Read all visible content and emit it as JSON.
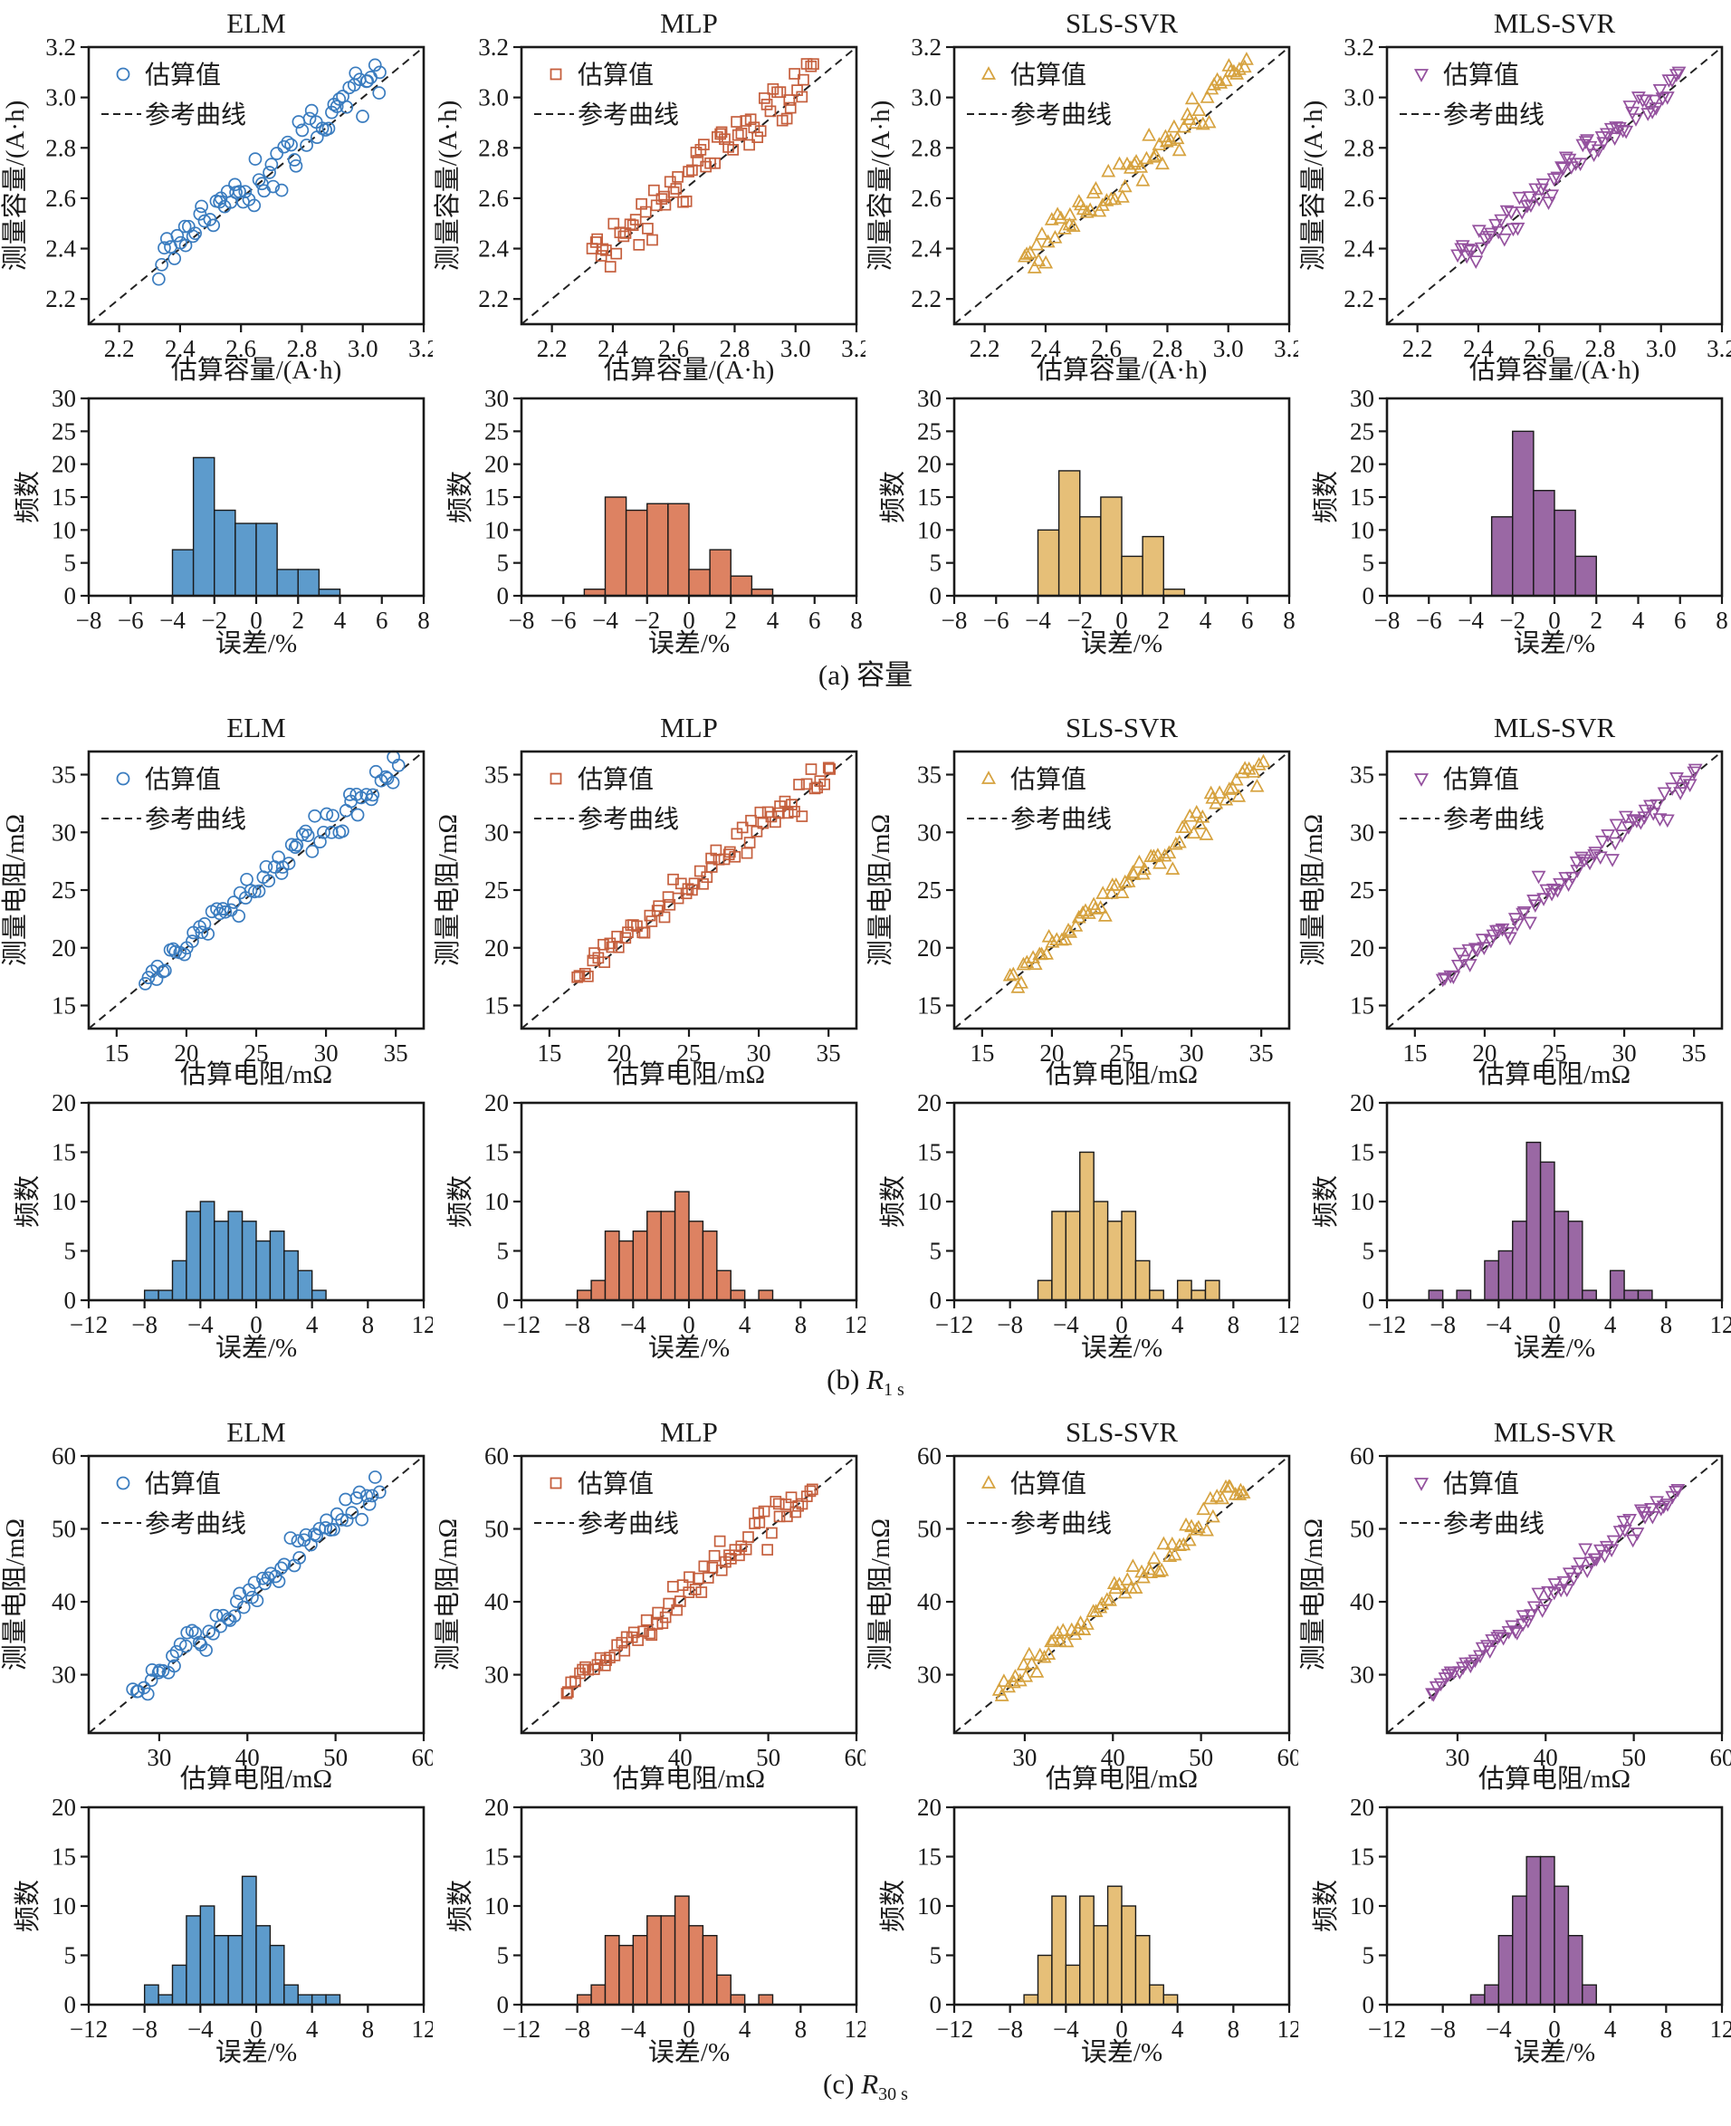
{
  "chart_data": {
    "type": [
      "scatter",
      "bar"
    ],
    "figure_description": "4 models x 3 quantities: scatter of estimated vs measured with reference diagonal, and error histograms",
    "legend": {
      "estimated": "估算值",
      "reference": "参考曲线"
    },
    "hist_ylabel": "频数",
    "hist_xlabel": "误差/%",
    "models": [
      {
        "id": "elm",
        "name": "ELM",
        "marker": "circle",
        "color": "#3a7cbf",
        "fill": "#5d9bcc"
      },
      {
        "id": "mlp",
        "name": "MLP",
        "marker": "square",
        "color": "#c55f3d",
        "fill": "#dd8262"
      },
      {
        "id": "sls",
        "name": "SLS-SVR",
        "marker": "triangle-up",
        "color": "#d6a23f",
        "fill": "#e6bf78"
      },
      {
        "id": "mls",
        "name": "MLS-SVR",
        "marker": "triangle-down",
        "color": "#94519e",
        "fill": "#9a68a4"
      }
    ],
    "groups": [
      {
        "caption": {
          "prefix": "(a) ",
          "main": "容量",
          "sub": ""
        },
        "scatter": {
          "xlabel": "估算容量/(A·h)",
          "ylabel": "测量容量/(A·h)",
          "lim": [
            2.1,
            3.2
          ],
          "ticks": [
            2.2,
            2.4,
            2.6,
            2.8,
            3.0,
            3.2
          ],
          "tick_decimals": 1,
          "data_range": [
            2.33,
            3.06
          ]
        },
        "hist": {
          "xlim": [
            -8,
            8
          ],
          "xticks": [
            -8,
            -6,
            -4,
            -2,
            0,
            2,
            4,
            6,
            8
          ],
          "ylim": [
            0,
            30
          ],
          "yticks": [
            0,
            5,
            10,
            15,
            20,
            25,
            30
          ],
          "bin_width": 1
        },
        "hists": {
          "elm": {
            "start": -4,
            "counts": [
              7,
              21,
              13,
              11,
              11,
              4,
              4,
              1
            ]
          },
          "mlp": {
            "start": -5,
            "counts": [
              1,
              15,
              13,
              14,
              14,
              4,
              7,
              3,
              1
            ]
          },
          "sls": {
            "start": -4,
            "counts": [
              10,
              19,
              12,
              15,
              6,
              9,
              1
            ]
          },
          "mls": {
            "start": -3,
            "counts": [
              12,
              25,
              16,
              13,
              6
            ]
          }
        }
      },
      {
        "caption": {
          "prefix": "(b) ",
          "main": "R",
          "sub": "1 s"
        },
        "scatter": {
          "xlabel": "估算电阻/mΩ",
          "ylabel": "测量电阻/mΩ",
          "lim": [
            13,
            37
          ],
          "ticks": [
            15,
            20,
            25,
            30,
            35
          ],
          "tick_decimals": 0,
          "data_range": [
            17,
            35.2
          ]
        },
        "hist": {
          "xlim": [
            -12,
            12
          ],
          "xticks": [
            -12,
            -8,
            -4,
            0,
            4,
            8,
            12
          ],
          "ylim": [
            0,
            20
          ],
          "yticks": [
            0,
            5,
            10,
            15,
            20
          ],
          "bin_width": 1
        },
        "hists": {
          "elm": {
            "start": -8,
            "counts": [
              1,
              1,
              4,
              9,
              10,
              8,
              9,
              8,
              6,
              7,
              5,
              3,
              1
            ]
          },
          "mlp": {
            "start": -8,
            "counts": [
              1,
              2,
              7,
              6,
              7,
              9,
              9,
              11,
              8,
              7,
              3,
              1,
              0,
              1
            ]
          },
          "sls": {
            "start": -6,
            "counts": [
              2,
              9,
              9,
              15,
              10,
              8,
              9,
              4,
              1,
              0,
              2,
              1,
              2
            ]
          },
          "mls": {
            "start": -9,
            "counts": [
              1,
              0,
              1,
              0,
              4,
              5,
              8,
              16,
              14,
              9,
              8,
              1,
              0,
              3,
              1,
              1
            ]
          }
        }
      },
      {
        "caption": {
          "prefix": "(c) ",
          "main": "R",
          "sub": "30 s"
        },
        "scatter": {
          "xlabel": "估算电阻/mΩ",
          "ylabel": "测量电阻/mΩ",
          "lim": [
            22,
            60
          ],
          "ticks": [
            30,
            40,
            50,
            60
          ],
          "tick_decimals": 0,
          "data_range": [
            27,
            55
          ]
        },
        "hist": {
          "xlim": [
            -12,
            12
          ],
          "xticks": [
            -12,
            -8,
            -4,
            0,
            4,
            8,
            12
          ],
          "ylim": [
            0,
            20
          ],
          "yticks": [
            0,
            5,
            10,
            15,
            20
          ],
          "bin_width": 1
        },
        "hists": {
          "elm": {
            "start": -8,
            "counts": [
              2,
              1,
              4,
              9,
              10,
              7,
              7,
              13,
              8,
              6,
              2,
              1,
              1,
              1
            ]
          },
          "mlp": {
            "start": -8,
            "counts": [
              1,
              2,
              7,
              6,
              7,
              9,
              9,
              11,
              8,
              7,
              3,
              1,
              0,
              1
            ]
          },
          "sls": {
            "start": -7,
            "counts": [
              1,
              5,
              11,
              4,
              11,
              8,
              12,
              10,
              7,
              2,
              1
            ]
          },
          "mls": {
            "start": -6,
            "counts": [
              1,
              2,
              7,
              11,
              15,
              15,
              12,
              7,
              2
            ]
          }
        }
      }
    ]
  }
}
